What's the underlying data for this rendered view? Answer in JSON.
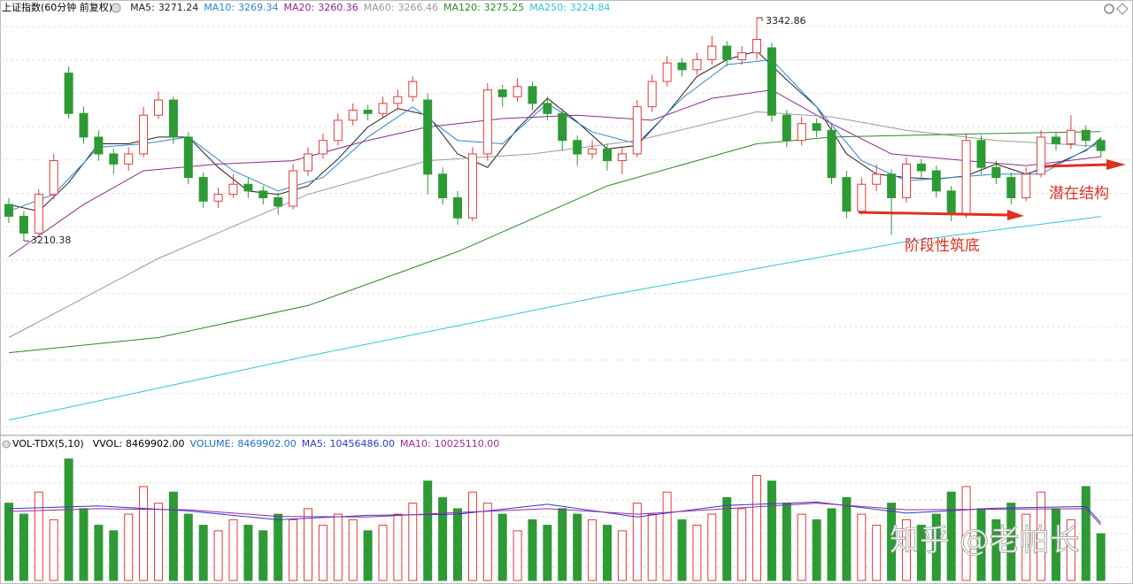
{
  "chart_data": {
    "type": "candlestick",
    "title": "上证指数(60分钟 前复权)",
    "up_color": "#e23b3b",
    "down_color": "#2e9a35",
    "grid": true,
    "ylim": [
      3096,
      3345.5
    ],
    "open": [
      3232,
      3225,
      3215,
      3238,
      3310,
      3286,
      3272,
      3262,
      3256,
      3262,
      3285,
      3294,
      3272,
      3248,
      3234,
      3238,
      3244,
      3240,
      3236,
      3231,
      3252,
      3262,
      3270,
      3282,
      3288,
      3286,
      3292,
      3296,
      3294,
      3250,
      3236,
      3224,
      3262,
      3300,
      3296,
      3302,
      3292,
      3286,
      3270,
      3262,
      3265,
      3258,
      3262,
      3290,
      3305,
      3316,
      3312,
      3318,
      3326,
      3318,
      3322,
      3325,
      3285,
      3270,
      3280,
      3276,
      3248,
      3228,
      3244,
      3250,
      3236,
      3256,
      3252,
      3240,
      3226,
      3270,
      3254,
      3248,
      3236,
      3250,
      3272,
      3268,
      3276,
      3270
    ],
    "high": [
      3236,
      3228,
      3241,
      3262,
      3314,
      3290,
      3276,
      3265,
      3266,
      3290,
      3299,
      3296,
      3275,
      3251,
      3242,
      3250,
      3248,
      3243,
      3239,
      3256,
      3266,
      3274,
      3286,
      3292,
      3291,
      3296,
      3300,
      3308,
      3298,
      3254,
      3240,
      3266,
      3304,
      3303,
      3307,
      3305,
      3296,
      3289,
      3273,
      3270,
      3268,
      3266,
      3294,
      3309,
      3320,
      3319,
      3322,
      3332,
      3329,
      3326,
      3342.86,
      3328,
      3288,
      3284,
      3283,
      3279,
      3252,
      3248,
      3256,
      3253,
      3260,
      3259,
      3255,
      3243,
      3274,
      3273,
      3258,
      3251,
      3254,
      3276,
      3275,
      3285,
      3279,
      3272
    ],
    "low": [
      3221,
      3210.38,
      3213,
      3235,
      3283,
      3268,
      3258,
      3250,
      3252,
      3260,
      3283,
      3268,
      3244,
      3230,
      3230,
      3236,
      3236,
      3232,
      3226,
      3229,
      3249,
      3259,
      3267,
      3279,
      3282,
      3283,
      3288,
      3293,
      3238,
      3232,
      3220,
      3222,
      3258,
      3290,
      3293,
      3288,
      3282,
      3264,
      3255,
      3259,
      3252,
      3250,
      3260,
      3287,
      3302,
      3308,
      3309,
      3315,
      3314,
      3315,
      3318,
      3281,
      3266,
      3267,
      3272,
      3244,
      3224,
      3226,
      3240,
      3214,
      3233,
      3248,
      3236,
      3222,
      3224,
      3250,
      3244,
      3232,
      3234,
      3248,
      3264,
      3265,
      3266,
      3260
    ],
    "close": [
      3225,
      3215,
      3238,
      3258,
      3286,
      3272,
      3262,
      3256,
      3262,
      3285,
      3294,
      3272,
      3248,
      3234,
      3238,
      3244,
      3240,
      3236,
      3231,
      3252,
      3262,
      3270,
      3282,
      3288,
      3286,
      3292,
      3296,
      3305,
      3250,
      3236,
      3224,
      3262,
      3300,
      3296,
      3302,
      3292,
      3286,
      3270,
      3262,
      3265,
      3258,
      3262,
      3290,
      3305,
      3316,
      3312,
      3318,
      3326,
      3318,
      3322,
      3330,
      3285,
      3270,
      3280,
      3276,
      3248,
      3228,
      3244,
      3250,
      3236,
      3256,
      3252,
      3240,
      3226,
      3270,
      3254,
      3248,
      3236,
      3250,
      3272,
      3268,
      3276,
      3270,
      3264
    ],
    "series": [
      {
        "name": "MA5:",
        "color": "#222222",
        "x": [
          0,
          2,
          4,
          6,
          8,
          10,
          12,
          14,
          16,
          18,
          20,
          22,
          24,
          26,
          28,
          30,
          32,
          34,
          36,
          38,
          40,
          42,
          44,
          46,
          48,
          50,
          52,
          54,
          56,
          58,
          60,
          62,
          64,
          66,
          68,
          70,
          72,
          73
        ],
        "values": [
          3232,
          3228,
          3245,
          3268,
          3268,
          3272,
          3272,
          3254,
          3240,
          3238,
          3243,
          3259,
          3278,
          3289,
          3285,
          3262,
          3254,
          3277,
          3295,
          3281,
          3265,
          3267,
          3286,
          3308,
          3318,
          3323,
          3306,
          3290,
          3262,
          3250,
          3248,
          3247,
          3249,
          3256,
          3250,
          3256,
          3264,
          3271.24
        ]
      },
      {
        "name": "MA10:",
        "color": "#2b86d6",
        "x": [
          0,
          3,
          6,
          9,
          12,
          15,
          18,
          21,
          24,
          27,
          30,
          33,
          36,
          39,
          42,
          45,
          48,
          51,
          54,
          57,
          60,
          63,
          66,
          69,
          73
        ],
        "values": [
          3228,
          3238,
          3266,
          3268,
          3272,
          3252,
          3240,
          3248,
          3272,
          3290,
          3270,
          3268,
          3292,
          3275,
          3268,
          3295,
          3315,
          3318,
          3290,
          3258,
          3246,
          3248,
          3250,
          3250,
          3269.34
        ]
      },
      {
        "name": "MA20:",
        "color": "#8e2a8e",
        "x": [
          0,
          5,
          9,
          14,
          19,
          24,
          28,
          33,
          38,
          43,
          47,
          51,
          55,
          59,
          64,
          68,
          73
        ],
        "values": [
          3201,
          3232,
          3252,
          3256,
          3258,
          3270,
          3278,
          3283,
          3285,
          3282,
          3295,
          3300,
          3280,
          3262,
          3258,
          3255,
          3260.36
        ]
      },
      {
        "name": "MA60:",
        "color": "#9a9a9a",
        "x": [
          0,
          10,
          20,
          28,
          35,
          42,
          50,
          55,
          60,
          66,
          73
        ],
        "values": [
          3153,
          3200,
          3238,
          3258,
          3262,
          3270,
          3287,
          3284,
          3276,
          3270,
          3266.46
        ]
      },
      {
        "name": "MA120:",
        "color": "#2a8a2a",
        "x": [
          0,
          10,
          20,
          30,
          40,
          50,
          55,
          60,
          65,
          73
        ],
        "values": [
          3144,
          3153,
          3172,
          3204,
          3243,
          3268,
          3272,
          3273,
          3274,
          3275.25
        ]
      },
      {
        "name": "MA250:",
        "color": "#35c3d3",
        "x": [
          0,
          20,
          40,
          60,
          73
        ],
        "values": [
          3104,
          3142,
          3178,
          3210,
          3224.84
        ]
      }
    ],
    "annotations": [
      {
        "text": "阶段性筑底"
      },
      {
        "text": "潜在结构"
      }
    ]
  },
  "volume": {
    "title": "VOL-TDX(5,10)",
    "vvol_name": "VVOL:",
    "ylim": [
      0,
      25000000
    ],
    "series": [
      {
        "name": "VOLUME:",
        "color": "#1e70c8",
        "values": [
          14000000,
          12000000,
          16000000,
          11000000,
          22000000,
          13000000,
          10000000,
          9000000,
          12000000,
          17000000,
          14000000,
          16000000,
          12000000,
          10000000,
          9000000,
          11000000,
          10000000,
          9000000,
          12000000,
          11000000,
          13000000,
          10000000,
          12000000,
          11000000,
          9000000,
          10000000,
          12000000,
          14000000,
          18000000,
          15000000,
          13000000,
          16000000,
          14000000,
          12000000,
          9000000,
          11000000,
          10000000,
          13000000,
          12000000,
          11000000,
          10000000,
          9000000,
          14000000,
          12000000,
          16000000,
          11000000,
          10000000,
          12000000,
          15000000,
          13000000,
          19000000,
          18000000,
          14000000,
          12000000,
          11000000,
          13000000,
          15000000,
          12000000,
          10000000,
          14000000,
          11000000,
          10000000,
          12000000,
          16000000,
          17000000,
          13000000,
          11000000,
          14000000,
          12000000,
          16000000,
          13000000,
          11000000,
          17000000,
          8469902
        ],
        "value_labels": [
          null,
          null,
          null,
          null,
          null,
          null,
          null,
          null,
          null,
          null,
          null,
          null,
          null,
          null,
          null,
          null,
          null,
          null,
          null,
          null,
          null,
          null,
          null,
          null,
          null,
          null,
          null,
          null,
          null,
          null,
          null,
          null,
          null,
          null,
          null,
          null,
          null,
          null,
          null,
          null,
          null,
          null,
          null,
          null,
          null,
          null,
          null,
          null,
          null,
          null,
          null,
          null,
          null,
          null,
          null,
          null,
          null,
          null,
          null,
          null,
          null,
          null,
          null,
          null,
          null,
          null,
          null,
          null,
          null,
          null,
          null,
          null,
          null,
          "8469902.00"
        ]
      },
      {
        "name": "MA5:",
        "color": "#2a3ccf",
        "x": [
          0,
          6,
          12,
          18,
          24,
          30,
          36,
          42,
          48,
          54,
          60,
          66,
          72,
          73
        ],
        "values": [
          13000000,
          13500000,
          12600000,
          11000000,
          11800000,
          12000000,
          13800000,
          11500000,
          13600000,
          14200000,
          12200000,
          13100000,
          13400000,
          10456486
        ],
        "value_labels": [
          null,
          null,
          null,
          null,
          null,
          null,
          null,
          null,
          null,
          null,
          null,
          null,
          null,
          "10456486.00"
        ]
      },
      {
        "name": "MA10:",
        "color": "#a0289c",
        "x": [
          0,
          6,
          12,
          18,
          24,
          30,
          36,
          42,
          48,
          54,
          60,
          66,
          72,
          73
        ],
        "values": [
          12500000,
          13000000,
          12800000,
          11600000,
          11500000,
          12300000,
          13000000,
          12000000,
          13000000,
          14000000,
          12800000,
          12900000,
          13000000,
          10025110
        ],
        "value_labels": [
          null,
          null,
          null,
          null,
          null,
          null,
          null,
          null,
          null,
          null,
          null,
          null,
          null,
          "10025110.00"
        ]
      }
    ]
  },
  "watermark": "知乎 @老帕长"
}
